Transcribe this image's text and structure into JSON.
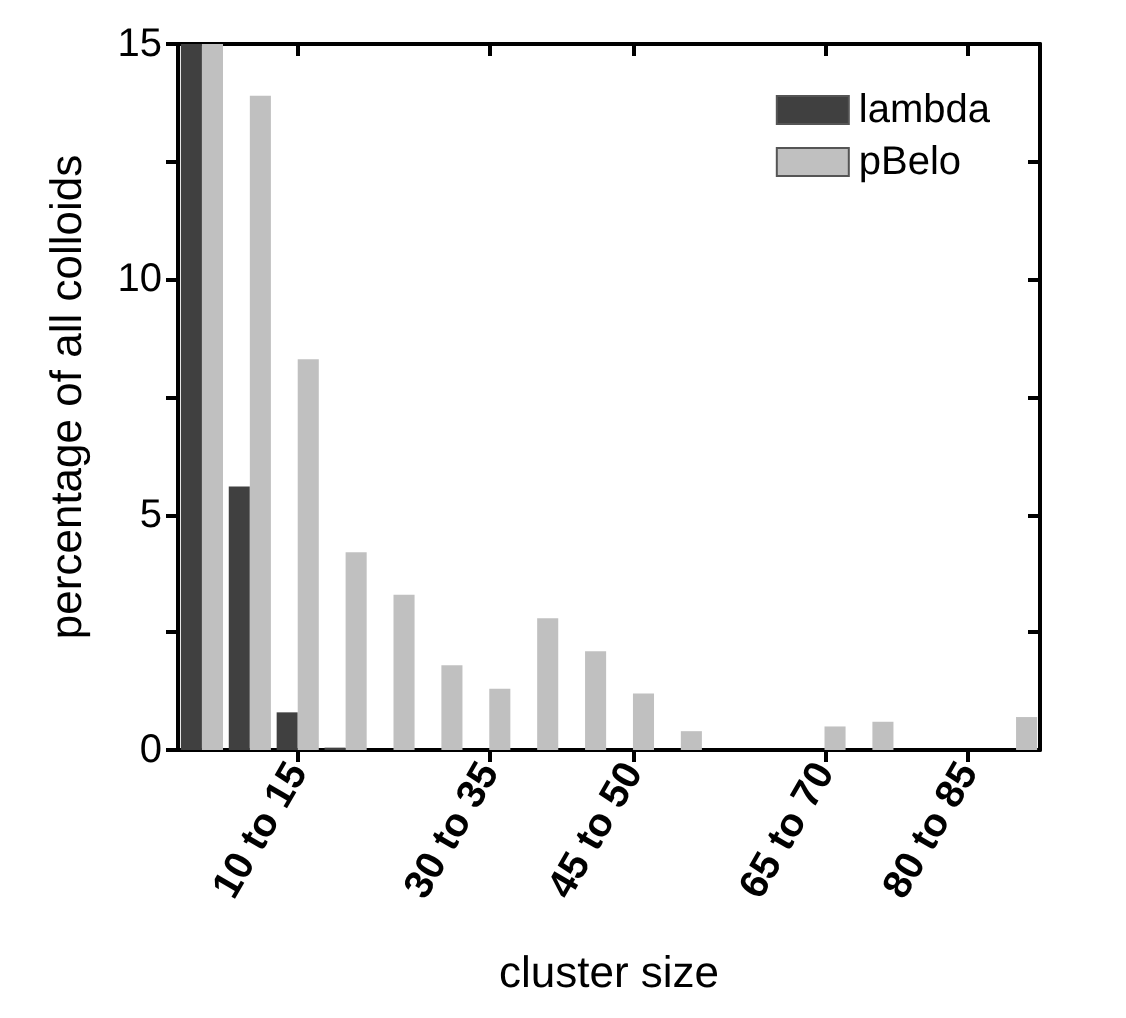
{
  "chart_data": {
    "type": "bar",
    "xlabel": "cluster size",
    "ylabel": "percentage of all colloids",
    "categories": [
      null,
      null,
      "10 to 15",
      null,
      null,
      null,
      "30 to 35",
      null,
      null,
      "45 to 50",
      null,
      null,
      null,
      "65 to 70",
      null,
      null,
      "80 to 85",
      null
    ],
    "series": [
      {
        "name": "lambda",
        "color": "#404040",
        "values": [
          15,
          5.6,
          0.8,
          0.05,
          0,
          0,
          0,
          0,
          0,
          0,
          0,
          0,
          0,
          0,
          0,
          0,
          0,
          0
        ]
      },
      {
        "name": "pBelo",
        "color": "#c0c0c0",
        "values": [
          15,
          13.9,
          8.3,
          4.2,
          3.3,
          1.8,
          1.3,
          2.8,
          2.1,
          1.2,
          0.4,
          0,
          0,
          0.5,
          0.6,
          0,
          0,
          0.7
        ]
      }
    ],
    "ylim": [
      0,
      15
    ],
    "yticks": [
      0,
      {
        "value": 2.5,
        "label": null
      },
      5,
      {
        "value": 7.5,
        "label": null
      },
      10,
      {
        "value": 12.5,
        "label": null
      },
      15
    ],
    "grid": false,
    "legend": "top right"
  }
}
